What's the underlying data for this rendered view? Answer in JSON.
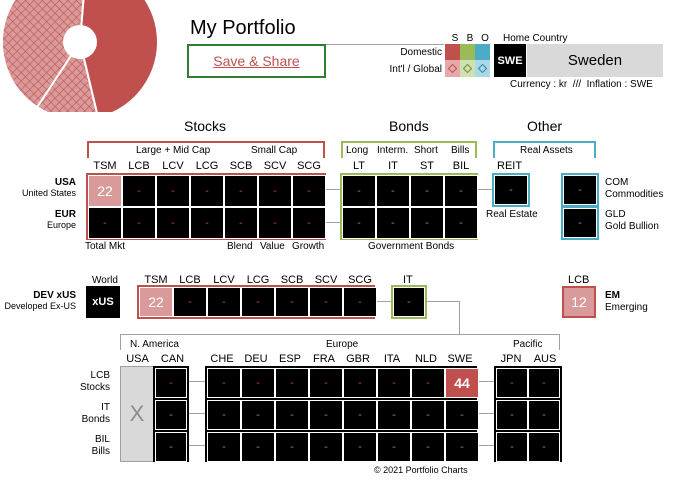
{
  "header": {
    "title": "My Portfolio",
    "save_share": "Save & Share",
    "sbo": [
      "S",
      "B",
      "O"
    ],
    "home_country_label": "Home Country",
    "domestic_label": "Domestic",
    "intl_label": "Int'l / Global",
    "country_code": "SWE",
    "country_name": "Sweden",
    "currency_line": "Currency : kr  ///  Inflation : SWE"
  },
  "colors": {
    "stocks": "#c0504d",
    "bonds": "#9bbb59",
    "other": "#4bacc6",
    "grey": "#a0a0a0"
  },
  "sections": {
    "stocks": "Stocks",
    "bonds": "Bonds",
    "other": "Other"
  },
  "stocks_groups": {
    "large_mid": "Large + Mid Cap",
    "small": "Small Cap"
  },
  "stocks_cols": [
    "TSM",
    "LCB",
    "LCV",
    "LCG",
    "SCB",
    "SCV",
    "SCG"
  ],
  "bonds_groups": [
    "Long",
    "Interm.",
    "Short",
    "Bills"
  ],
  "bonds_cols": [
    "LT",
    "IT",
    "ST",
    "BIL"
  ],
  "other_group": "Real Assets",
  "reit": "REIT",
  "real_estate": "Real Estate",
  "rows": {
    "usa": {
      "code": "USA",
      "name": "United States"
    },
    "eur": {
      "code": "EUR",
      "name": "Europe"
    }
  },
  "grid1": {
    "usa_stocks": [
      "22",
      "-",
      "-",
      "-",
      "-",
      "-",
      "-"
    ],
    "eur_stocks": [
      "-",
      "-",
      "-",
      "-",
      "-",
      "-",
      "-"
    ],
    "usa_bonds": [
      "-",
      "-",
      "-",
      "-"
    ],
    "eur_bonds": [
      "-",
      "-",
      "-",
      "-"
    ],
    "reit": "-",
    "com": "-",
    "gld": "-"
  },
  "footer1": {
    "total_mkt": "Total Mkt",
    "blend": "Blend",
    "value": "Value",
    "growth": "Growth",
    "gov_bonds": "Government Bonds"
  },
  "other_right": {
    "com_code": "COM",
    "com_name": "Commodities",
    "gld_code": "GLD",
    "gld_name": "Gold Bullion"
  },
  "dev": {
    "code": "DEV xUS",
    "name": "Developed Ex-US",
    "world_label": "World",
    "xus": "xUS",
    "cols": [
      "TSM",
      "LCB",
      "LCV",
      "LCG",
      "SCB",
      "SCV",
      "SCG"
    ],
    "values": [
      "22",
      "-",
      "-",
      "-",
      "-",
      "-",
      "-"
    ],
    "it_label": "IT",
    "it_value": "-"
  },
  "em": {
    "lcb_label": "LCB",
    "value": "12",
    "code": "EM",
    "name": "Emerging"
  },
  "countries": {
    "groups": {
      "na": "N. America",
      "europe": "Europe",
      "pacific": "Pacific"
    },
    "na_cols": [
      "USA",
      "CAN"
    ],
    "eu_cols": [
      "CHE",
      "DEU",
      "ESP",
      "FRA",
      "GBR",
      "ITA",
      "NLD",
      "SWE"
    ],
    "pac_cols": [
      "JPN",
      "AUS"
    ],
    "usa_mark": "X",
    "rows": [
      {
        "code": "LCB",
        "name": "Stocks",
        "can": "-",
        "eu": [
          "-",
          "-",
          "-",
          "-",
          "-",
          "-",
          "-",
          "44"
        ],
        "pac": [
          "-",
          "-"
        ]
      },
      {
        "code": "IT",
        "name": "Bonds",
        "can": "-",
        "eu": [
          "-",
          "-",
          "-",
          "-",
          "-",
          "-",
          "-",
          "-"
        ],
        "pac": [
          "-",
          "-"
        ]
      },
      {
        "code": "BIL",
        "name": "Bills",
        "can": "-",
        "eu": [
          "-",
          "-",
          "-",
          "-",
          "-",
          "-",
          "-",
          "-"
        ],
        "pac": [
          "-",
          "-"
        ]
      }
    ]
  },
  "copyright": "© 2021 Portfolio Charts",
  "pie": {
    "slices": [
      {
        "label": "Stocks-solid",
        "fraction": 0.45,
        "color": "#c0504d"
      },
      {
        "label": "Stocks-hatched",
        "fraction": 0.13,
        "color": "#d99a9a"
      },
      {
        "label": "Stocks-hatched-2",
        "fraction": 0.42,
        "color": "#d99a9a"
      }
    ]
  }
}
